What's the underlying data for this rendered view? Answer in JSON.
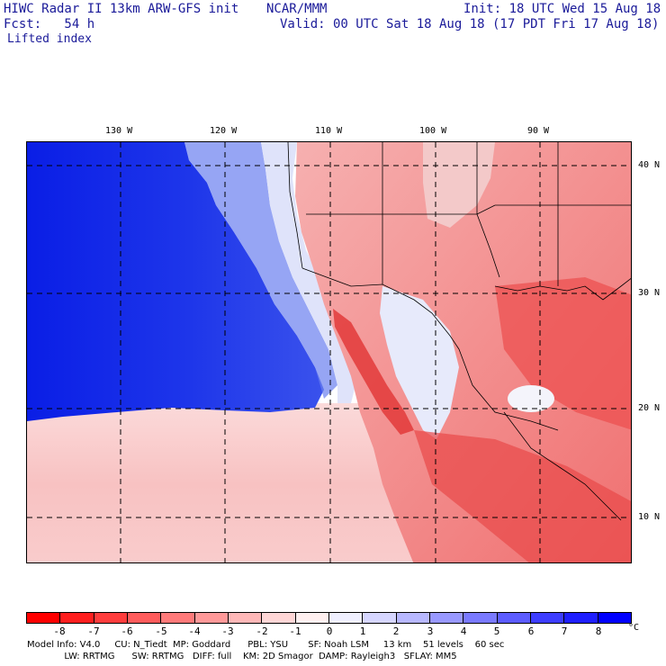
{
  "header": {
    "model_title": "HIWC Radar II 13km ARW-GFS init",
    "org": "NCAR/MMM",
    "init_time": "Init: 18 UTC Wed 15 Aug 18",
    "forecast": "Fcst:   54 h",
    "valid_time": "Valid: 00 UTC Sat 18 Aug 18 (17 PDT Fri 17 Aug 18)",
    "field": "Lifted index"
  },
  "map": {
    "longitude_labels": [
      "130 W",
      "120 W",
      "110 W",
      "100 W",
      "90 W"
    ],
    "latitude_labels": [
      "40 N",
      "30 N",
      "20 N",
      "10 N"
    ],
    "colors": {
      "ocean_stable": "#0a1ee6",
      "ocean_mid": "#4a62ee",
      "neutral": "#f4f4fb",
      "unstable_light": "#f7b9b9",
      "unstable_mid": "#f27a7a",
      "unstable_strong": "#e83a3a",
      "gridline": "#000000"
    }
  },
  "colorbar": {
    "labels": [
      "-8",
      "-7",
      "-6",
      "-5",
      "-4",
      "-3",
      "-2",
      "-1",
      "0",
      "1",
      "2",
      "3",
      "4",
      "5",
      "6",
      "7",
      "8"
    ],
    "unit": "°C",
    "colors": [
      "#ff0000",
      "#ff1f1f",
      "#ff3d3d",
      "#ff5c5c",
      "#ff7a7a",
      "#ff9999",
      "#ffb8b8",
      "#ffd6d6",
      "#fff0f0",
      "#f0f0ff",
      "#d6d6ff",
      "#b8b8ff",
      "#9999ff",
      "#7a7aff",
      "#5c5cff",
      "#3d3dff",
      "#1f1fff",
      "#0000ff"
    ]
  },
  "footer": {
    "line1": "Model Info: V4.0     CU: N_Tiedt  MP: Goddard      PBL: YSU       SF: Noah LSM     13 km    51 levels    60 sec",
    "line2": "             LW: RRTMG      SW: RRTMG   DIFF: full    KM: 2D Smagor  DAMP: Rayleigh3   SFLAY: MM5"
  }
}
